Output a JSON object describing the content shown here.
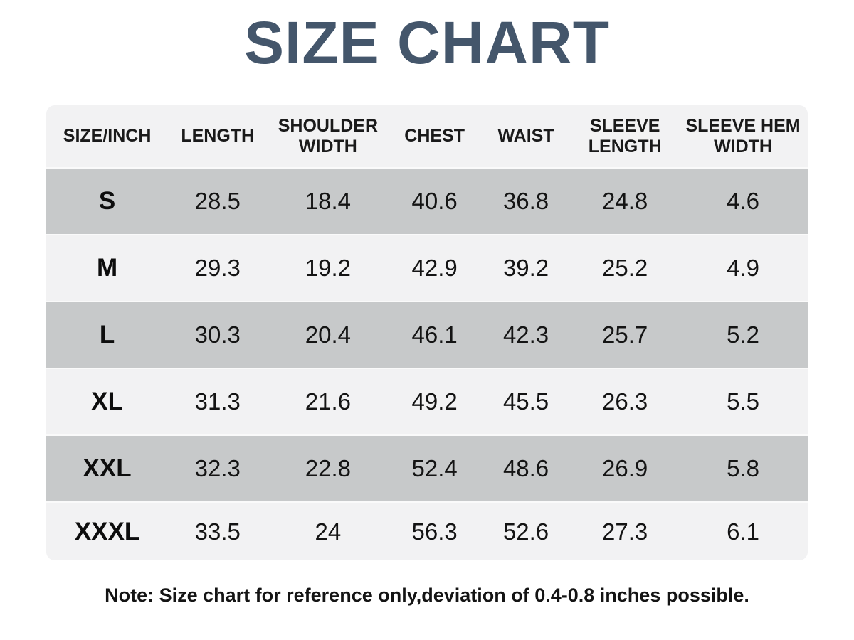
{
  "title": "SIZE CHART",
  "colors": {
    "title": "#44566b",
    "row_gray": "#c7c9ca",
    "row_light": "#f2f2f3",
    "text": "#141414",
    "background": "#ffffff"
  },
  "chart_data": {
    "type": "table",
    "title": "SIZE CHART",
    "columns": [
      "SIZE/INCH",
      "LENGTH",
      "SHOULDER WIDTH",
      "CHEST",
      "WAIST",
      "SLEEVE LENGTH",
      "SLEEVE HEM WIDTH"
    ],
    "rows": [
      {
        "size": "S",
        "values": [
          "28.5",
          "18.4",
          "40.6",
          "36.8",
          "24.8",
          "4.6"
        ]
      },
      {
        "size": "M",
        "values": [
          "29.3",
          "19.2",
          "42.9",
          "39.2",
          "25.2",
          "4.9"
        ]
      },
      {
        "size": "L",
        "values": [
          "30.3",
          "20.4",
          "46.1",
          "42.3",
          "25.7",
          "5.2"
        ]
      },
      {
        "size": "XL",
        "values": [
          "31.3",
          "21.6",
          "49.2",
          "45.5",
          "26.3",
          "5.5"
        ]
      },
      {
        "size": "XXL",
        "values": [
          "32.3",
          "22.8",
          "52.4",
          "48.6",
          "26.9",
          "5.8"
        ]
      },
      {
        "size": "XXXL",
        "values": [
          "33.5",
          "24",
          "56.3",
          "52.6",
          "27.3",
          "6.1"
        ]
      }
    ],
    "note": "Note: Size chart for reference only,deviation of 0.4-0.8 inches possible."
  }
}
